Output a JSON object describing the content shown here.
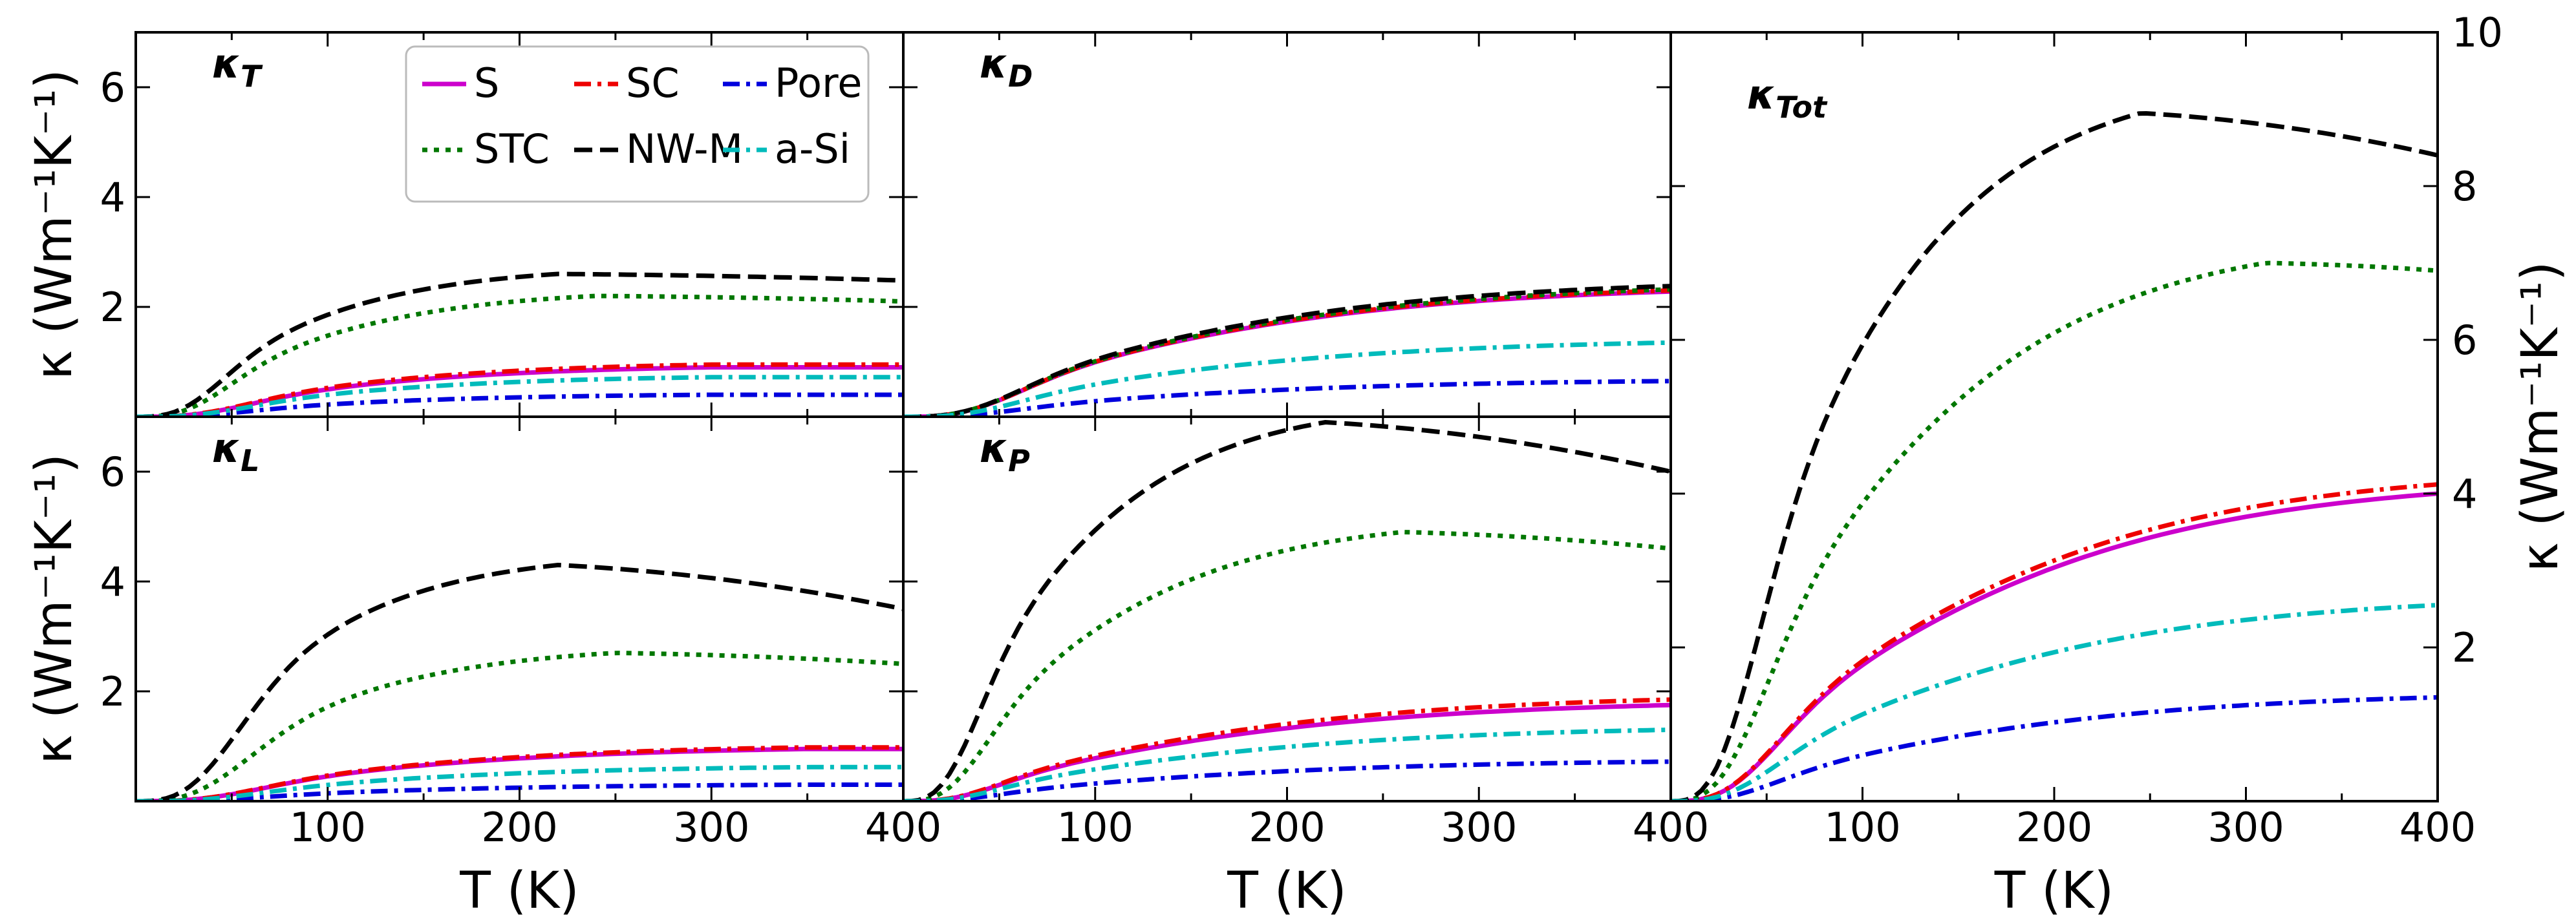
{
  "figure": {
    "xlabel": "T (K)",
    "ylabel": "κ (Wm⁻¹K⁻¹)",
    "xlim": [
      0,
      400
    ],
    "xticks": [
      "100",
      "200",
      "300",
      "400"
    ],
    "small_yticks": [
      "2",
      "4",
      "6"
    ],
    "big_yticks": [
      "2",
      "4",
      "6",
      "8",
      "10"
    ]
  },
  "chart_data": [
    {
      "type": "line",
      "panel": "kT",
      "title": "κT",
      "title_main": "κ",
      "title_sub": "T",
      "xlim": [
        0,
        400
      ],
      "ylim": [
        0,
        7
      ],
      "series": [
        {
          "name": "S",
          "color": "#cc00cc",
          "dash": "solid",
          "peak": 0.9,
          "Tpeak": 300,
          "Tc": 55,
          "fall": 0.0
        },
        {
          "name": "SC",
          "color": "#ee0000",
          "dash": "dashdot",
          "peak": 0.95,
          "Tpeak": 300,
          "Tc": 55,
          "fall": 0.0
        },
        {
          "name": "Pore",
          "color": "#0000dd",
          "dash": "dashdot",
          "peak": 0.4,
          "Tpeak": 300,
          "Tc": 55,
          "fall": 0.0
        },
        {
          "name": "STC",
          "color": "#007700",
          "dash": "dotted",
          "peak": 2.2,
          "Tpeak": 240,
          "Tc": 45,
          "fall": 0.1
        },
        {
          "name": "NW-M",
          "color": "#000000",
          "dash": "dashed",
          "peak": 2.6,
          "Tpeak": 220,
          "Tc": 42,
          "fall": 0.12
        },
        {
          "name": "a-Si",
          "color": "#00bbbb",
          "dash": "dashdot",
          "peak": 0.72,
          "Tpeak": 300,
          "Tc": 55,
          "fall": 0.0
        }
      ]
    },
    {
      "type": "line",
      "panel": "kD",
      "title": "κD",
      "title_main": "κ",
      "title_sub": "D",
      "xlim": [
        0,
        400
      ],
      "ylim": [
        0,
        7
      ],
      "series": [
        {
          "name": "S",
          "color": "#cc00cc",
          "dash": "solid",
          "peak": 2.28,
          "Tpeak": 400,
          "Tc": 55,
          "fall": 0.0
        },
        {
          "name": "SC",
          "color": "#ee0000",
          "dash": "dashdot",
          "peak": 2.3,
          "Tpeak": 400,
          "Tc": 55,
          "fall": 0.0
        },
        {
          "name": "Pore",
          "color": "#0000dd",
          "dash": "dashdot",
          "peak": 0.65,
          "Tpeak": 400,
          "Tc": 55,
          "fall": 0.0
        },
        {
          "name": "STC",
          "color": "#007700",
          "dash": "dotted",
          "peak": 2.32,
          "Tpeak": 400,
          "Tc": 55,
          "fall": 0.0
        },
        {
          "name": "NW-M",
          "color": "#000000",
          "dash": "dashed",
          "peak": 2.38,
          "Tpeak": 400,
          "Tc": 55,
          "fall": 0.0
        },
        {
          "name": "a-Si",
          "color": "#00bbbb",
          "dash": "dashdot",
          "peak": 1.35,
          "Tpeak": 400,
          "Tc": 55,
          "fall": 0.0
        }
      ]
    },
    {
      "type": "line",
      "panel": "kL",
      "title": "κL",
      "title_main": "κ",
      "title_sub": "L",
      "xlim": [
        0,
        400
      ],
      "ylim": [
        0,
        7
      ],
      "series": [
        {
          "name": "S",
          "color": "#cc00cc",
          "dash": "solid",
          "peak": 0.95,
          "Tpeak": 350,
          "Tc": 60,
          "fall": 0.0
        },
        {
          "name": "SC",
          "color": "#ee0000",
          "dash": "dashdot",
          "peak": 0.98,
          "Tpeak": 350,
          "Tc": 60,
          "fall": 0.0
        },
        {
          "name": "Pore",
          "color": "#0000dd",
          "dash": "dashdot",
          "peak": 0.3,
          "Tpeak": 350,
          "Tc": 60,
          "fall": 0.0
        },
        {
          "name": "STC",
          "color": "#007700",
          "dash": "dotted",
          "peak": 2.7,
          "Tpeak": 250,
          "Tc": 55,
          "fall": 0.2
        },
        {
          "name": "NW-M",
          "color": "#000000",
          "dash": "dashed",
          "peak": 4.3,
          "Tpeak": 220,
          "Tc": 50,
          "fall": 0.8
        },
        {
          "name": "a-Si",
          "color": "#00bbbb",
          "dash": "dashdot",
          "peak": 0.62,
          "Tpeak": 350,
          "Tc": 60,
          "fall": 0.0
        }
      ]
    },
    {
      "type": "line",
      "panel": "kP",
      "title": "κP",
      "title_main": "κ",
      "title_sub": "P",
      "xlim": [
        0,
        400
      ],
      "ylim": [
        0,
        7
      ],
      "series": [
        {
          "name": "S",
          "color": "#cc00cc",
          "dash": "solid",
          "peak": 1.75,
          "Tpeak": 400,
          "Tc": 45,
          "fall": 0.0
        },
        {
          "name": "SC",
          "color": "#ee0000",
          "dash": "dashdot",
          "peak": 1.85,
          "Tpeak": 400,
          "Tc": 45,
          "fall": 0.0
        },
        {
          "name": "Pore",
          "color": "#0000dd",
          "dash": "dashdot",
          "peak": 0.72,
          "Tpeak": 400,
          "Tc": 45,
          "fall": 0.0
        },
        {
          "name": "STC",
          "color": "#007700",
          "dash": "dotted",
          "peak": 4.9,
          "Tpeak": 260,
          "Tc": 40,
          "fall": 0.3
        },
        {
          "name": "NW-M",
          "color": "#000000",
          "dash": "dashed",
          "peak": 6.9,
          "Tpeak": 220,
          "Tc": 36,
          "fall": 0.9
        },
        {
          "name": "a-Si",
          "color": "#00bbbb",
          "dash": "dashdot",
          "peak": 1.3,
          "Tpeak": 400,
          "Tc": 45,
          "fall": 0.0
        }
      ]
    },
    {
      "type": "line",
      "panel": "kTot",
      "title": "κTot",
      "title_main": "κ",
      "title_sub": "Tot",
      "xlim": [
        0,
        400
      ],
      "ylim": [
        0,
        10
      ],
      "yaxis_side": "right",
      "series": [
        {
          "name": "S",
          "color": "#cc00cc",
          "dash": "solid",
          "peak": 4.0,
          "Tpeak": 400,
          "Tc": 50,
          "fall": 0.0
        },
        {
          "name": "SC",
          "color": "#ee0000",
          "dash": "dashdot",
          "peak": 4.12,
          "Tpeak": 400,
          "Tc": 50,
          "fall": 0.0
        },
        {
          "name": "Pore",
          "color": "#0000dd",
          "dash": "dashdot",
          "peak": 1.35,
          "Tpeak": 400,
          "Tc": 50,
          "fall": 0.0
        },
        {
          "name": "STC",
          "color": "#007700",
          "dash": "dotted",
          "peak": 7.0,
          "Tpeak": 310,
          "Tc": 45,
          "fall": 0.1
        },
        {
          "name": "NW-M",
          "color": "#000000",
          "dash": "dashed",
          "peak": 8.95,
          "Tpeak": 245,
          "Tc": 42,
          "fall": 0.55
        },
        {
          "name": "a-Si",
          "color": "#00bbbb",
          "dash": "dashdot",
          "peak": 2.55,
          "Tpeak": 400,
          "Tc": 50,
          "fall": 0.0
        }
      ]
    }
  ],
  "legend": {
    "placement": "top-right of first panel",
    "entries": [
      {
        "label": "S",
        "color": "#cc00cc",
        "dash": "solid"
      },
      {
        "label": "SC",
        "color": "#ee0000",
        "dash": "dashdot"
      },
      {
        "label": "Pore",
        "color": "#0000dd",
        "dash": "dashdot"
      },
      {
        "label": "STC",
        "color": "#007700",
        "dash": "dotted"
      },
      {
        "label": "NW-M",
        "color": "#000000",
        "dash": "dashed"
      },
      {
        "label": "a-Si",
        "color": "#00bbbb",
        "dash": "dashdot"
      }
    ]
  }
}
